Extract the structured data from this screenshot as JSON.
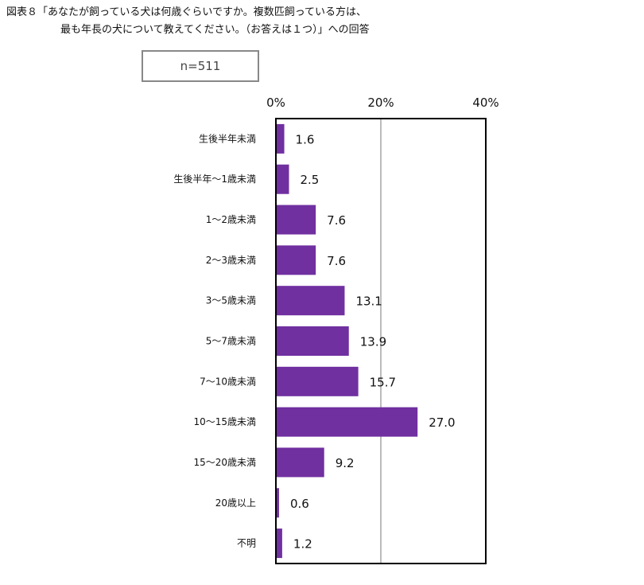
{
  "title": {
    "line1": "図表８「あなたが飼っている犬は何歳ぐらいですか。複数匹飼っている方は、",
    "line2": "最も年長の犬について教えてください。（お答えは１つ）」への回答"
  },
  "sample_size": "n=511",
  "colors": {
    "bar": "#7030a0",
    "gridline": "#a6a6a6",
    "frame": "#000000"
  },
  "chart_data": {
    "type": "bar",
    "orientation": "horizontal",
    "categories": [
      "生後半年未満",
      "生後半年～1歳未満",
      "1～2歳未満",
      "2～3歳未満",
      "3～5歳未満",
      "5～7歳未満",
      "7～10歳未満",
      "10～15歳未満",
      "15～20歳未満",
      "20歳以上",
      "不明"
    ],
    "values": [
      1.6,
      2.5,
      7.6,
      7.6,
      13.1,
      13.9,
      15.7,
      27.0,
      9.2,
      0.6,
      1.2
    ],
    "value_labels": [
      "1.6",
      "2.5",
      "7.6",
      "7.6",
      "13.1",
      "13.9",
      "15.7",
      "27.0",
      "9.2",
      "0.6",
      "1.2"
    ],
    "xlim": [
      0,
      40
    ],
    "xticks": [
      "0%",
      "20%",
      "40%"
    ],
    "xtick_values": [
      0,
      20,
      40
    ],
    "grid": true,
    "legend": "none"
  }
}
